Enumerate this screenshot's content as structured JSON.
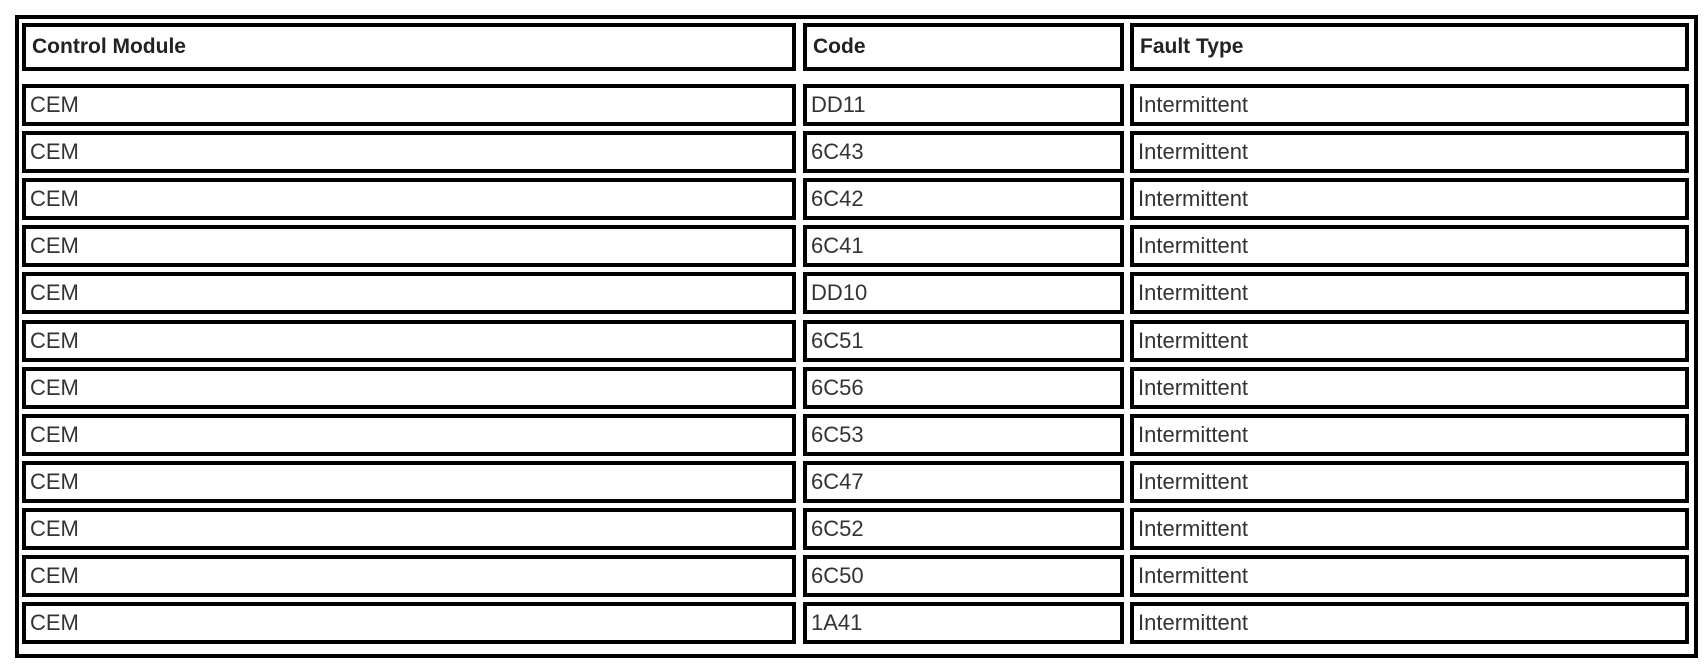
{
  "table": {
    "headers": [
      "Control Module",
      "Code",
      "Fault Type"
    ],
    "rows": [
      [
        "CEM",
        "DD11",
        "Intermittent"
      ],
      [
        "CEM",
        "6C43",
        "Intermittent"
      ],
      [
        "CEM",
        "6C42",
        "Intermittent"
      ],
      [
        "CEM",
        "6C41",
        "Intermittent"
      ],
      [
        "CEM",
        "DD10",
        "Intermittent"
      ],
      [
        "CEM",
        "6C51",
        "Intermittent"
      ],
      [
        "CEM",
        "6C56",
        "Intermittent"
      ],
      [
        "CEM",
        "6C53",
        "Intermittent"
      ],
      [
        "CEM",
        "6C47",
        "Intermittent"
      ],
      [
        "CEM",
        "6C52",
        "Intermittent"
      ],
      [
        "CEM",
        "6C50",
        "Intermittent"
      ],
      [
        "CEM",
        "1A41",
        "Intermittent"
      ]
    ]
  }
}
